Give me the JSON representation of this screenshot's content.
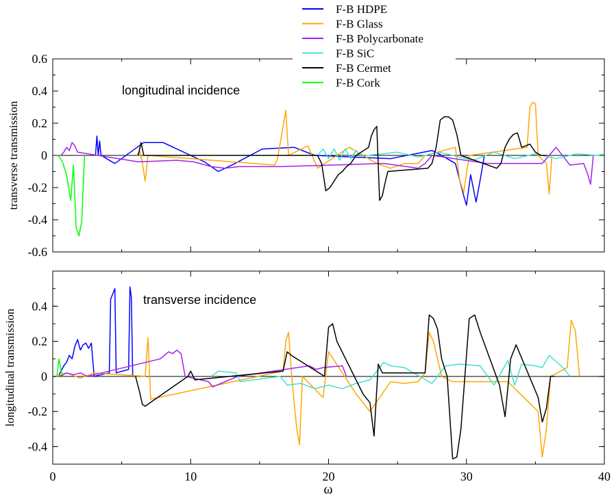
{
  "legend": {
    "placement": "top-center",
    "entries": [
      {
        "label": "F-B HDPE",
        "color": "#0000ff"
      },
      {
        "label": "F-B Glass",
        "color": "#ffa500"
      },
      {
        "label": "F-B Polycarbonate",
        "color": "#a020f0"
      },
      {
        "label": "F-B SiC",
        "color": "#40e0d0"
      },
      {
        "label": "F-B Cermet",
        "color": "#000000"
      },
      {
        "label": "F-B Cork",
        "color": "#00ff00"
      }
    ]
  },
  "chart_data": [
    {
      "type": "line",
      "title": "",
      "annotation": "longitudinal incidence",
      "xlabel": "",
      "ylabel": "transverse transmission",
      "xlim": [
        0,
        40
      ],
      "ylim": [
        -0.6,
        0.6
      ],
      "xticks": [
        0,
        10,
        20,
        30,
        40
      ],
      "yticks": [
        "-0.6",
        "-0.4",
        "-0.2",
        "0",
        "0.2",
        "0.4",
        "0.6"
      ],
      "grid": false,
      "series": [
        {
          "name": "F-B HDPE",
          "color": "#0000ff",
          "x": [
            3.1,
            3.2,
            3.3,
            3.4,
            3.5,
            4.5,
            6.6,
            8.0,
            11.0,
            12.0,
            13.0,
            15.2,
            17.5,
            19.0,
            24.5,
            27.5,
            28.0,
            29.2,
            29.5,
            29.8,
            30.0,
            30.3,
            30.7,
            31.0,
            31.3
          ],
          "y": [
            0,
            0.12,
            0,
            0.09,
            0,
            -0.05,
            0.08,
            0.08,
            -0.04,
            -0.1,
            -0.06,
            0.04,
            0.05,
            0,
            -0.02,
            0.03,
            0.01,
            -0.05,
            -0.15,
            -0.25,
            -0.31,
            -0.12,
            -0.29,
            -0.15,
            0
          ]
        },
        {
          "name": "F-B Glass",
          "color": "#ffa500",
          "x": [
            6.1,
            6.3,
            6.5,
            6.7,
            6.9,
            16.1,
            16.3,
            16.5,
            16.7,
            16.9,
            17.1,
            18.5,
            19.2,
            21.5,
            22.5,
            23.5,
            24.5,
            25.5,
            26.5,
            27.0,
            29.2,
            29.5,
            29.8,
            30.2,
            34.4,
            34.6,
            34.8,
            35.0,
            35.2,
            35.8,
            36.0,
            36.2
          ],
          "y": [
            0,
            0.03,
            -0.05,
            -0.16,
            0,
            -0.06,
            -0.02,
            0.08,
            0.18,
            0.28,
            0,
            0.06,
            -0.08,
            0.05,
            0,
            -0.05,
            -0.08,
            -0.05,
            -0.05,
            0,
            0.05,
            -0.15,
            -0.23,
            0,
            0.05,
            0.3,
            0.33,
            0.32,
            0,
            -0.05,
            -0.24,
            0
          ]
        },
        {
          "name": "F-B Polycarbonate",
          "color": "#a020f0",
          "x": [
            0.6,
            0.8,
            1.0,
            1.2,
            1.4,
            1.6,
            1.8,
            6.2,
            9.0,
            10.2,
            11.5,
            12.5,
            13.5,
            16.5,
            24.0,
            26.5,
            27.0,
            27.5,
            31.5,
            33.0,
            34.0,
            35.5,
            36.5,
            37.5,
            38.5,
            38.8,
            39.0,
            39.2
          ],
          "y": [
            0,
            0.02,
            0.05,
            0.03,
            0.08,
            0.06,
            0.02,
            -0.04,
            -0.03,
            -0.04,
            -0.07,
            -0.08,
            -0.07,
            -0.07,
            -0.05,
            -0.08,
            -0.05,
            0,
            -0.05,
            -0.05,
            -0.05,
            -0.05,
            0.05,
            -0.06,
            -0.05,
            -0.12,
            -0.18,
            0
          ]
        },
        {
          "name": "F-B SiC",
          "color": "#40e0d0",
          "x": [
            19.2,
            19.6,
            20.0,
            20.4,
            20.8,
            21.2,
            21.6,
            22.0,
            22.4,
            22.8,
            25.0,
            26.5,
            28.0,
            30.5,
            32.0,
            33.5,
            35.0,
            36.5,
            38.0,
            39.5,
            40.0
          ],
          "y": [
            0,
            0.04,
            -0.02,
            0.04,
            -0.03,
            0.04,
            -0.02,
            0.03,
            -0.01,
            0,
            0.02,
            -0.01,
            0.02,
            -0.03,
            0.02,
            -0.02,
            0.01,
            -0.02,
            0.01,
            0,
            0.01
          ]
        },
        {
          "name": "F-B Cermet",
          "color": "#000000",
          "x": [
            6.2,
            6.4,
            6.6,
            19.2,
            19.5,
            19.8,
            20.1,
            20.4,
            20.7,
            21.0,
            21.3,
            21.6,
            22.0,
            22.9,
            23.1,
            23.3,
            23.5,
            23.7,
            23.9,
            24.1,
            24.3,
            27.2,
            27.5,
            27.8,
            28.1,
            28.4,
            28.7,
            29.0,
            29.3,
            29.6,
            32.2,
            32.5,
            32.8,
            33.1,
            33.4,
            33.7,
            34.0,
            34.3,
            34.6,
            35.0,
            35.4,
            35.8
          ],
          "y": [
            0,
            0.08,
            0,
            0,
            -0.05,
            -0.22,
            -0.2,
            -0.16,
            -0.12,
            -0.1,
            -0.07,
            -0.05,
            0,
            0.05,
            0.12,
            0.16,
            0.18,
            -0.28,
            -0.25,
            -0.17,
            -0.1,
            -0.08,
            -0.05,
            0.05,
            0.22,
            0.24,
            0.24,
            0.22,
            0.13,
            0,
            -0.08,
            -0.05,
            0.05,
            0.1,
            0.13,
            0.14,
            0.05,
            0.06,
            0.07,
            0.02,
            0,
            0
          ]
        },
        {
          "name": "F-B Cork",
          "color": "#00ff00",
          "x": [
            0.4,
            0.7,
            1.0,
            1.3,
            1.5,
            1.7,
            1.9,
            2.1,
            2.3
          ],
          "y": [
            0,
            -0.04,
            -0.12,
            -0.28,
            -0.06,
            -0.45,
            -0.5,
            -0.41,
            0
          ]
        }
      ]
    },
    {
      "type": "line",
      "title": "",
      "annotation": "transverse incidence",
      "xlabel": "ω",
      "ylabel": "longitudinal transmission",
      "xlim": [
        0,
        40
      ],
      "ylim": [
        -0.5,
        0.6
      ],
      "xticks": [
        0,
        10,
        20,
        30,
        40
      ],
      "yticks": [
        "-0.4",
        "-0.2",
        "0",
        "0.2",
        "0.4"
      ],
      "grid": false,
      "series": [
        {
          "name": "F-B HDPE",
          "color": "#0000ff",
          "x": [
            0.4,
            0.6,
            0.8,
            1.0,
            1.2,
            1.4,
            1.6,
            1.8,
            2.0,
            2.2,
            2.4,
            2.6,
            2.8,
            3.0,
            4.1,
            4.2,
            4.3,
            4.4,
            4.5,
            4.6,
            5.5,
            5.6,
            5.7,
            5.8
          ],
          "y": [
            0,
            0.03,
            0.06,
            0.08,
            0.12,
            0.1,
            0.17,
            0.21,
            0.15,
            0.18,
            0.19,
            0.16,
            0.19,
            0,
            0.02,
            0.44,
            0.46,
            0.48,
            0.5,
            0.02,
            0.04,
            0.51,
            0.45,
            0
          ]
        },
        {
          "name": "F-B Glass",
          "color": "#ffa500",
          "x": [
            0.3,
            0.6,
            1.0,
            2.0,
            3.0,
            6.7,
            6.9,
            7.1,
            16.7,
            16.9,
            17.1,
            17.3,
            17.5,
            17.7,
            17.9,
            18.1,
            19.6,
            20.0,
            22.0,
            23.0,
            24.5,
            25.5,
            26.5,
            27.0,
            27.3,
            27.6,
            27.9,
            28.2,
            29.0,
            33.0,
            35.2,
            35.5,
            35.8,
            36.1,
            37.3,
            37.6,
            37.9,
            38.2
          ],
          "y": [
            0,
            0.01,
            0.02,
            -0.01,
            0.02,
            0,
            0.22,
            -0.13,
            0.03,
            0.2,
            0.25,
            0.03,
            -0.15,
            -0.3,
            -0.39,
            0,
            -0.12,
            0.14,
            -0.1,
            -0.2,
            -0.03,
            -0.04,
            -0.03,
            0.02,
            0.25,
            0.2,
            0.1,
            0,
            -0.03,
            -0.03,
            -0.2,
            -0.46,
            -0.3,
            0,
            0.05,
            0.32,
            0.26,
            0
          ]
        },
        {
          "name": "F-B Polycarbonate",
          "color": "#a020f0",
          "x": [
            0.5,
            1.0,
            1.5,
            2.0,
            2.5,
            7.8,
            8.1,
            8.4,
            8.7,
            9.0,
            9.3,
            9.6,
            11.3,
            11.6,
            11.9,
            12.2,
            12.5,
            12.8,
            13.1,
            13.4,
            18.6,
            19.1,
            19.6,
            21.0,
            21.3
          ],
          "y": [
            0,
            0.02,
            0.01,
            0.02,
            0,
            0.1,
            0.12,
            0.14,
            0.13,
            0.15,
            0.13,
            0,
            -0.03,
            -0.06,
            -0.05,
            -0.04,
            -0.03,
            -0.02,
            -0.01,
            0,
            0.06,
            0.04,
            0.05,
            0.06,
            0
          ]
        },
        {
          "name": "F-B SiC",
          "color": "#40e0d0",
          "x": [
            11.5,
            12.0,
            13.3,
            13.6,
            16.5,
            17.0,
            18.0,
            19.0,
            20.0,
            21.0,
            22.0,
            23.0,
            24.0,
            24.5,
            25.5,
            27.5,
            28.5,
            29.5,
            31.0,
            32.0,
            33.0,
            33.5,
            34.0,
            35.0,
            35.5,
            36.0,
            37.0,
            37.5
          ],
          "y": [
            0,
            0.03,
            0.02,
            -0.03,
            0,
            -0.05,
            -0.04,
            -0.07,
            -0.05,
            -0.07,
            -0.04,
            -0.02,
            0.08,
            0.06,
            0.05,
            -0.04,
            0.06,
            0.07,
            0.06,
            -0.05,
            0.09,
            -0.05,
            0.07,
            0.06,
            0.05,
            0.12,
            0.05,
            0
          ]
        },
        {
          "name": "F-B Cermet",
          "color": "#000000",
          "x": [
            6.0,
            6.3,
            6.5,
            6.7,
            9.8,
            10.0,
            10.3,
            16.7,
            17.0,
            17.3,
            19.7,
            20.0,
            20.3,
            20.6,
            22.5,
            23.0,
            23.3,
            23.6,
            23.9,
            27.0,
            27.3,
            27.6,
            27.9,
            28.2,
            28.6,
            29.0,
            29.3,
            29.6,
            30.2,
            30.6,
            31.0,
            32.4,
            32.8,
            33.2,
            33.6,
            35.2,
            35.5,
            35.8,
            36.1,
            36.4
          ],
          "y": [
            0,
            -0.09,
            -0.16,
            -0.17,
            0,
            0.03,
            -0.02,
            0.03,
            0.14,
            0.12,
            0,
            0.28,
            0.3,
            0.2,
            -0.1,
            -0.15,
            -0.34,
            0.07,
            0.02,
            0.02,
            0.35,
            0.33,
            0.27,
            0.1,
            0,
            -0.47,
            -0.46,
            -0.3,
            0.33,
            0.35,
            0.25,
            -0.05,
            -0.23,
            0.1,
            0.18,
            -0.12,
            -0.26,
            -0.18,
            0,
            0
          ]
        },
        {
          "name": "F-B Cork",
          "color": "#00ff00",
          "x": [
            0.3,
            0.45,
            0.6,
            0.8
          ],
          "y": [
            0,
            0.1,
            0.03,
            0
          ]
        }
      ]
    }
  ]
}
